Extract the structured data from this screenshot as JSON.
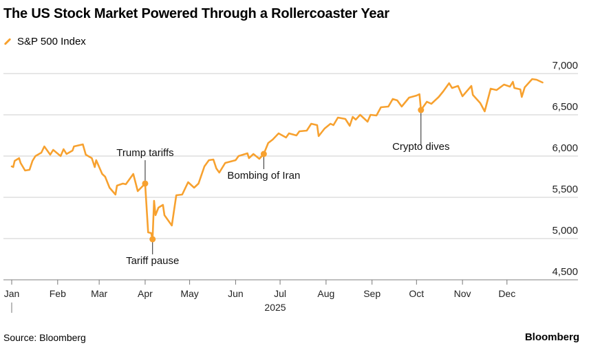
{
  "title": "The US Stock Market Powered Through a Rollercoaster Year",
  "source": "Source: Bloomberg",
  "brand": "Bloomberg",
  "chart_data": {
    "type": "line",
    "title": "The US Stock Market Powered Through a Rollercoaster Year",
    "xlabel": "2025",
    "ylabel": "",
    "x_unit": "day of year 2025",
    "ylim": [
      4500,
      7000
    ],
    "yticks": [
      7000,
      6500,
      6000,
      5500,
      5000,
      4500
    ],
    "ytick_labels": [
      "7,000",
      "6,500",
      "6,000",
      "5,500",
      "5,000",
      "4,500"
    ],
    "month_labels": [
      "Jan",
      "Feb",
      "Mar",
      "Apr",
      "May",
      "Jun",
      "Jul",
      "Aug",
      "Sep",
      "Oct",
      "Nov",
      "Dec"
    ],
    "month_start_days": [
      0,
      31,
      59,
      90,
      120,
      151,
      181,
      212,
      243,
      273,
      304,
      334
    ],
    "grid": true,
    "legend_placement": "top-left",
    "color": "#f7a12f",
    "series": [
      {
        "name": "S&P 500 Index",
        "points": [
          [
            0,
            5875
          ],
          [
            1,
            5867
          ],
          [
            2,
            5942
          ],
          [
            5,
            5975
          ],
          [
            6,
            5917
          ],
          [
            9,
            5825
          ],
          [
            12,
            5833
          ],
          [
            14,
            5942
          ],
          [
            16,
            6000
          ],
          [
            20,
            6042
          ],
          [
            22,
            6117
          ],
          [
            26,
            6017
          ],
          [
            28,
            6075
          ],
          [
            33,
            6000
          ],
          [
            35,
            6083
          ],
          [
            37,
            6025
          ],
          [
            41,
            6067
          ],
          [
            42,
            6117
          ],
          [
            48,
            6142
          ],
          [
            50,
            6017
          ],
          [
            54,
            5975
          ],
          [
            56,
            5867
          ],
          [
            57,
            5950
          ],
          [
            61,
            5783
          ],
          [
            63,
            5750
          ],
          [
            66,
            5617
          ],
          [
            70,
            5533
          ],
          [
            71,
            5642
          ],
          [
            75,
            5667
          ],
          [
            77,
            5658
          ],
          [
            82,
            5783
          ],
          [
            85,
            5575
          ],
          [
            90,
            5667
          ],
          [
            92,
            5075
          ],
          [
            94,
            5067
          ],
          [
            95,
            4992
          ],
          [
            96,
            5458
          ],
          [
            97,
            5283
          ],
          [
            99,
            5375
          ],
          [
            102,
            5408
          ],
          [
            103,
            5283
          ],
          [
            108,
            5158
          ],
          [
            111,
            5525
          ],
          [
            115,
            5533
          ],
          [
            119,
            5683
          ],
          [
            123,
            5617
          ],
          [
            126,
            5667
          ],
          [
            130,
            5875
          ],
          [
            133,
            5950
          ],
          [
            136,
            5958
          ],
          [
            138,
            5850
          ],
          [
            140,
            5800
          ],
          [
            144,
            5917
          ],
          [
            151,
            5950
          ],
          [
            153,
            6000
          ],
          [
            159,
            6033
          ],
          [
            160,
            5975
          ],
          [
            163,
            6025
          ],
          [
            167,
            5967
          ],
          [
            170,
            6025
          ],
          [
            173,
            6158
          ],
          [
            176,
            6200
          ],
          [
            180,
            6275
          ],
          [
            185,
            6225
          ],
          [
            187,
            6275
          ],
          [
            192,
            6250
          ],
          [
            194,
            6300
          ],
          [
            199,
            6308
          ],
          [
            202,
            6392
          ],
          [
            206,
            6375
          ],
          [
            207,
            6242
          ],
          [
            211,
            6333
          ],
          [
            215,
            6392
          ],
          [
            217,
            6375
          ],
          [
            220,
            6467
          ],
          [
            225,
            6450
          ],
          [
            228,
            6367
          ],
          [
            230,
            6475
          ],
          [
            232,
            6442
          ],
          [
            235,
            6500
          ],
          [
            240,
            6417
          ],
          [
            242,
            6500
          ],
          [
            246,
            6492
          ],
          [
            249,
            6592
          ],
          [
            254,
            6600
          ],
          [
            257,
            6692
          ],
          [
            260,
            6675
          ],
          [
            263,
            6600
          ],
          [
            268,
            6708
          ],
          [
            273,
            6733
          ],
          [
            275,
            6750
          ],
          [
            276,
            6558
          ],
          [
            280,
            6658
          ],
          [
            283,
            6633
          ],
          [
            288,
            6717
          ],
          [
            291,
            6783
          ],
          [
            295,
            6883
          ],
          [
            297,
            6825
          ],
          [
            301,
            6850
          ],
          [
            304,
            6725
          ],
          [
            310,
            6850
          ],
          [
            311,
            6742
          ],
          [
            316,
            6642
          ],
          [
            319,
            6542
          ],
          [
            323,
            6817
          ],
          [
            327,
            6800
          ],
          [
            332,
            6867
          ],
          [
            336,
            6842
          ],
          [
            338,
            6900
          ],
          [
            339,
            6825
          ],
          [
            343,
            6808
          ],
          [
            344,
            6717
          ],
          [
            346,
            6833
          ],
          [
            351,
            6933
          ],
          [
            354,
            6925
          ],
          [
            358,
            6892
          ]
        ]
      }
    ],
    "annotations": [
      {
        "label": "Trump tariffs",
        "day": 90,
        "value": 5667,
        "position": "above"
      },
      {
        "label": "Tariff pause",
        "day": 95,
        "value": 4992,
        "position": "below"
      },
      {
        "label": "Bombing of Iran",
        "day": 170,
        "value": 6025,
        "position": "below"
      },
      {
        "label": "Crypto dives",
        "day": 276,
        "value": 6558,
        "position": "below"
      }
    ]
  }
}
